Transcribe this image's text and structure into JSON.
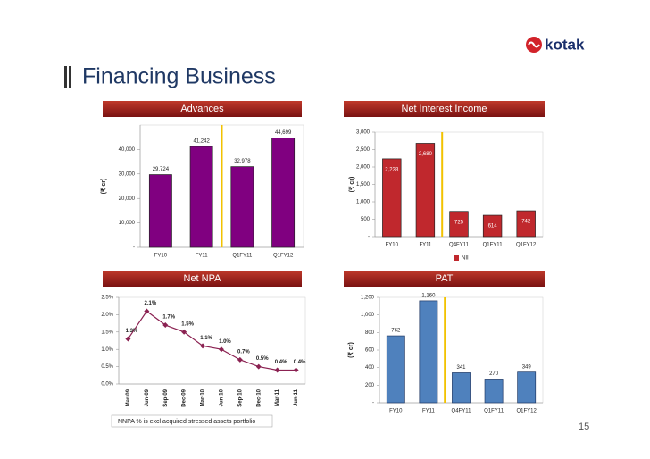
{
  "header": {
    "title": "Financing Business",
    "logo": "kotak"
  },
  "footnote": "NNPA % is excl acquired stressed assets portfolio",
  "page_number": "15",
  "chart_data": [
    {
      "type": "bar",
      "title": "Advances",
      "y_label": "(₹ cr)",
      "categories": [
        "FY10",
        "FY11",
        "Q1FY11",
        "Q1FY12"
      ],
      "values": [
        29724,
        41242,
        32978,
        44699
      ],
      "value_labels": [
        "29,724",
        "41,242",
        "32,978",
        "44,699"
      ],
      "color": "#800080",
      "ylim": [
        0,
        50000
      ],
      "yticks": [
        {
          "value": 0,
          "label": "-"
        },
        {
          "value": 10000,
          "label": "10,000"
        },
        {
          "value": 20000,
          "label": "20,000"
        },
        {
          "value": 30000,
          "label": "30,000"
        },
        {
          "value": 40000,
          "label": "40,000"
        }
      ]
    },
    {
      "type": "bar",
      "title": "Net Interest Income",
      "y_label": "(₹ cr)",
      "categories": [
        "FY10",
        "FY11",
        "Q4FY11",
        "Q1FY11",
        "Q1FY12"
      ],
      "series": [
        {
          "name": "NII",
          "color": "#c0282d",
          "values": [
            2233,
            2680,
            725,
            614,
            742
          ],
          "value_labels": [
            "2,233",
            "2,680",
            "725",
            "614",
            "742"
          ]
        }
      ],
      "ylim": [
        0,
        3000
      ],
      "yticks": [
        {
          "value": 0,
          "label": "-"
        },
        500,
        {
          "value": 1000,
          "label": "1,000"
        },
        {
          "value": 1500,
          "label": "1,500"
        },
        {
          "value": 2000,
          "label": "2,000"
        },
        {
          "value": 2500,
          "label": "2,500"
        },
        {
          "value": 3000,
          "label": "3,000"
        }
      ],
      "legend": "bottom"
    },
    {
      "type": "line",
      "title": "Net NPA",
      "categories": [
        "Mar-09",
        "Jun-09",
        "Sep-09",
        "Dec-09",
        "Mar-10",
        "Jun-10",
        "Sep-10",
        "Dec-10",
        "Mar-11",
        "Jun-11"
      ],
      "values": [
        1.3,
        2.1,
        1.7,
        1.5,
        1.1,
        1.0,
        0.7,
        0.5,
        0.4,
        0.4
      ],
      "value_labels": [
        "1.3%",
        "2.1%",
        "1.7%",
        "1.5%",
        "1.1%",
        "1.0%",
        "0.7%",
        "0.5%",
        "0.4%",
        "0.4%"
      ],
      "color": "#8b2252",
      "ylim": [
        0,
        2.5
      ],
      "yticks": [
        {
          "value": 0,
          "label": "0.0%"
        },
        {
          "value": 0.5,
          "label": "0.5%"
        },
        {
          "value": 1.0,
          "label": "1.0%"
        },
        {
          "value": 1.5,
          "label": "1.5%"
        },
        {
          "value": 2.0,
          "label": "2.0%"
        },
        {
          "value": 2.5,
          "label": "2.5%"
        }
      ]
    },
    {
      "type": "bar",
      "title": "PAT",
      "y_label": "(₹ cr)",
      "categories": [
        "FY10",
        "FY11",
        "Q4FY11",
        "Q1FY11",
        "Q1FY12"
      ],
      "values": [
        762,
        1160,
        341,
        270,
        349
      ],
      "value_labels": [
        "762",
        "1,160",
        "341",
        "270",
        "349"
      ],
      "color": "#4f81bd",
      "ylim": [
        0,
        1200
      ],
      "yticks": [
        {
          "value": 0,
          "label": "-"
        },
        200,
        400,
        600,
        800,
        {
          "value": 1000,
          "label": "1,000"
        },
        {
          "value": 1200,
          "label": "1,200"
        }
      ]
    }
  ]
}
